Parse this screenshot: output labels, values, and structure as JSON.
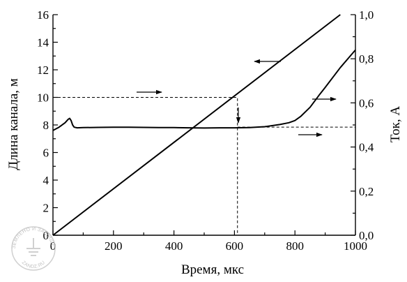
{
  "chart_data": {
    "type": "line",
    "xlabel": "Время,  мкс",
    "ylabel_left": "Длина канала,  м",
    "ylabel_right": "Ток,  А",
    "xlim": [
      0,
      1000
    ],
    "ylim_left": [
      0,
      16
    ],
    "ylim_right": [
      0,
      1.0
    ],
    "x_ticks": [
      "0",
      "200",
      "400",
      "600",
      "800",
      "1000"
    ],
    "y_left_ticks": [
      "0",
      "2",
      "4",
      "6",
      "8",
      "10",
      "12",
      "14",
      "16"
    ],
    "y_right_ticks": [
      "0,0",
      "0,2",
      "0,4",
      "0,6",
      "0,8",
      "1,0"
    ],
    "series": [
      {
        "axis": "left",
        "x": [
          0,
          950
        ],
        "y": [
          0,
          16
        ]
      },
      {
        "axis": "right",
        "x": [
          0,
          20,
          40,
          50,
          55,
          60,
          65,
          70,
          80,
          100,
          150,
          200,
          250,
          300,
          350,
          400,
          450,
          500,
          550,
          600,
          650,
          700,
          750,
          780,
          800,
          820,
          850,
          880,
          900,
          950,
          1000
        ],
        "y": [
          0.475,
          0.49,
          0.51,
          0.525,
          0.53,
          0.52,
          0.5,
          0.49,
          0.487,
          0.488,
          0.489,
          0.49,
          0.49,
          0.489,
          0.488,
          0.488,
          0.487,
          0.486,
          0.487,
          0.487,
          0.488,
          0.492,
          0.502,
          0.51,
          0.52,
          0.54,
          0.58,
          0.635,
          0.67,
          0.76,
          0.84
        ]
      }
    ],
    "guides": [
      {
        "x": 610,
        "y_left": 10
      },
      {
        "x": 610,
        "y_right": 0.49
      }
    ],
    "watermark": "ЗАЗЕМЛЕНО И ЗАЩИЩЕНО ZANDZ.RU"
  }
}
